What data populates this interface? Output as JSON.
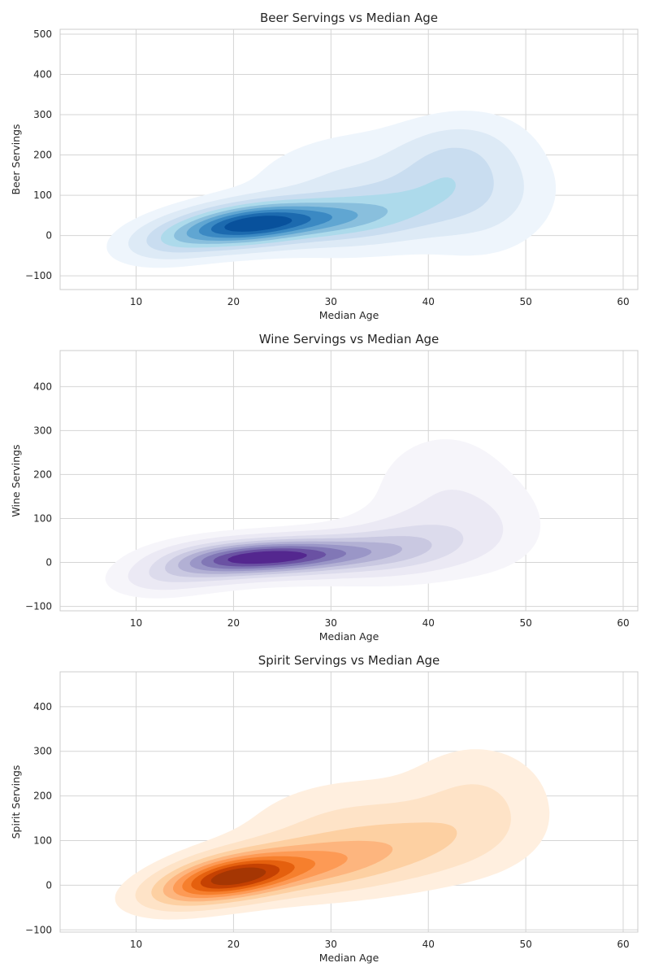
{
  "chart_data": [
    {
      "type": "density",
      "title": "Beer Servings vs Median Age",
      "xlabel": "Median Age",
      "ylabel": "Beer Servings",
      "xlim": [
        2.2,
        61.5
      ],
      "ylim": [
        -134,
        512
      ],
      "xticks": [
        10,
        20,
        30,
        40,
        50,
        60
      ],
      "yticks": [
        -100,
        0,
        100,
        200,
        300,
        400,
        500
      ],
      "grid": true,
      "colormap": "Blues",
      "colors": [
        "#eef5fc",
        "#ddeaf6",
        "#c9ddf0",
        "#addaeb",
        "#89bfdd",
        "#60a6d2",
        "#3b89c3",
        "#1c6aaf",
        "#08519c"
      ],
      "density_components": [
        {
          "mx": 21,
          "my": 25,
          "sx": 4.5,
          "sy": 35,
          "rho": 0.3,
          "w": 1.0
        },
        {
          "mx": 28,
          "my": 40,
          "sx": 5.5,
          "sy": 35,
          "rho": 0.2,
          "w": 0.55
        },
        {
          "mx": 14,
          "my": -10,
          "sx": 3.5,
          "sy": 35,
          "rho": 0.3,
          "w": 0.3
        },
        {
          "mx": 36,
          "my": 70,
          "sx": 6,
          "sy": 60,
          "rho": 0.3,
          "w": 0.35
        },
        {
          "mx": 42,
          "my": 190,
          "sx": 4,
          "sy": 60,
          "rho": 0.2,
          "w": 0.2
        },
        {
          "mx": 45,
          "my": 110,
          "sx": 4.5,
          "sy": 90,
          "rho": 0.0,
          "w": 0.2
        },
        {
          "mx": 30,
          "my": 160,
          "sx": 6,
          "sy": 70,
          "rho": 0.4,
          "w": 0.1
        },
        {
          "mx": 24,
          "my": 360,
          "sx": 2.2,
          "sy": 18,
          "rho": 0.4,
          "w": 0.03
        }
      ]
    },
    {
      "type": "density",
      "title": "Wine Servings vs Median Age",
      "xlabel": "Median Age",
      "ylabel": "Wine Servings",
      "xlim": [
        2.2,
        61.5
      ],
      "ylim": [
        -110,
        482
      ],
      "xticks": [
        10,
        20,
        30,
        40,
        50,
        60
      ],
      "yticks": [
        -100,
        0,
        100,
        200,
        300,
        400
      ],
      "grid": true,
      "colormap": "Purples",
      "colors": [
        "#f6f5fa",
        "#ebe9f4",
        "#dcdbec",
        "#c9c8e1",
        "#b2b0d4",
        "#9a96c7",
        "#8177b6",
        "#6a51a3",
        "#54278f"
      ],
      "density_components": [
        {
          "mx": 23,
          "my": 12,
          "sx": 5,
          "sy": 25,
          "rho": 0.2,
          "w": 1.0
        },
        {
          "mx": 17,
          "my": -5,
          "sx": 4,
          "sy": 30,
          "rho": 0.2,
          "w": 0.45
        },
        {
          "mx": 30,
          "my": 18,
          "sx": 6,
          "sy": 30,
          "rho": 0.2,
          "w": 0.6
        },
        {
          "mx": 38,
          "my": 40,
          "sx": 5,
          "sy": 45,
          "rho": 0.2,
          "w": 0.3
        },
        {
          "mx": 41,
          "my": 160,
          "sx": 4.5,
          "sy": 90,
          "rho": 0.1,
          "w": 0.12
        },
        {
          "mx": 12,
          "my": -40,
          "sx": 3,
          "sy": 25,
          "rho": 0.1,
          "w": 0.15
        },
        {
          "mx": 46,
          "my": 90,
          "sx": 4,
          "sy": 70,
          "rho": 0.0,
          "w": 0.1
        }
      ]
    },
    {
      "type": "density",
      "title": "Spirit Servings vs Median Age",
      "xlabel": "Median Age",
      "ylabel": "Spirit Servings",
      "xlim": [
        2.2,
        61.5
      ],
      "ylim": [
        -105,
        478
      ],
      "xticks": [
        10,
        20,
        30,
        40,
        50,
        60
      ],
      "yticks": [
        -100,
        0,
        100,
        200,
        300,
        400
      ],
      "grid": true,
      "colormap": "Oranges",
      "colors": [
        "#ffefdf",
        "#fee3c7",
        "#fdd0a2",
        "#fdb57e",
        "#fd9a55",
        "#f67f2d",
        "#e5600e",
        "#c54102",
        "#a53603"
      ],
      "density_components": [
        {
          "mx": 20,
          "my": 18,
          "sx": 4,
          "sy": 32,
          "rho": 0.3,
          "w": 1.0
        },
        {
          "mx": 27,
          "my": 45,
          "sx": 5.5,
          "sy": 40,
          "rho": 0.2,
          "w": 0.5
        },
        {
          "mx": 15,
          "my": -15,
          "sx": 3.5,
          "sy": 30,
          "rho": 0.3,
          "w": 0.3
        },
        {
          "mx": 37,
          "my": 90,
          "sx": 6,
          "sy": 55,
          "rho": 0.2,
          "w": 0.3
        },
        {
          "mx": 45,
          "my": 180,
          "sx": 4.5,
          "sy": 80,
          "rho": 0.0,
          "w": 0.15
        },
        {
          "mx": 30,
          "my": 150,
          "sx": 6,
          "sy": 60,
          "rho": 0.3,
          "w": 0.1
        },
        {
          "mx": 26,
          "my": 312,
          "sx": 2.3,
          "sy": 16,
          "rho": 0.2,
          "w": 0.025
        }
      ]
    }
  ]
}
